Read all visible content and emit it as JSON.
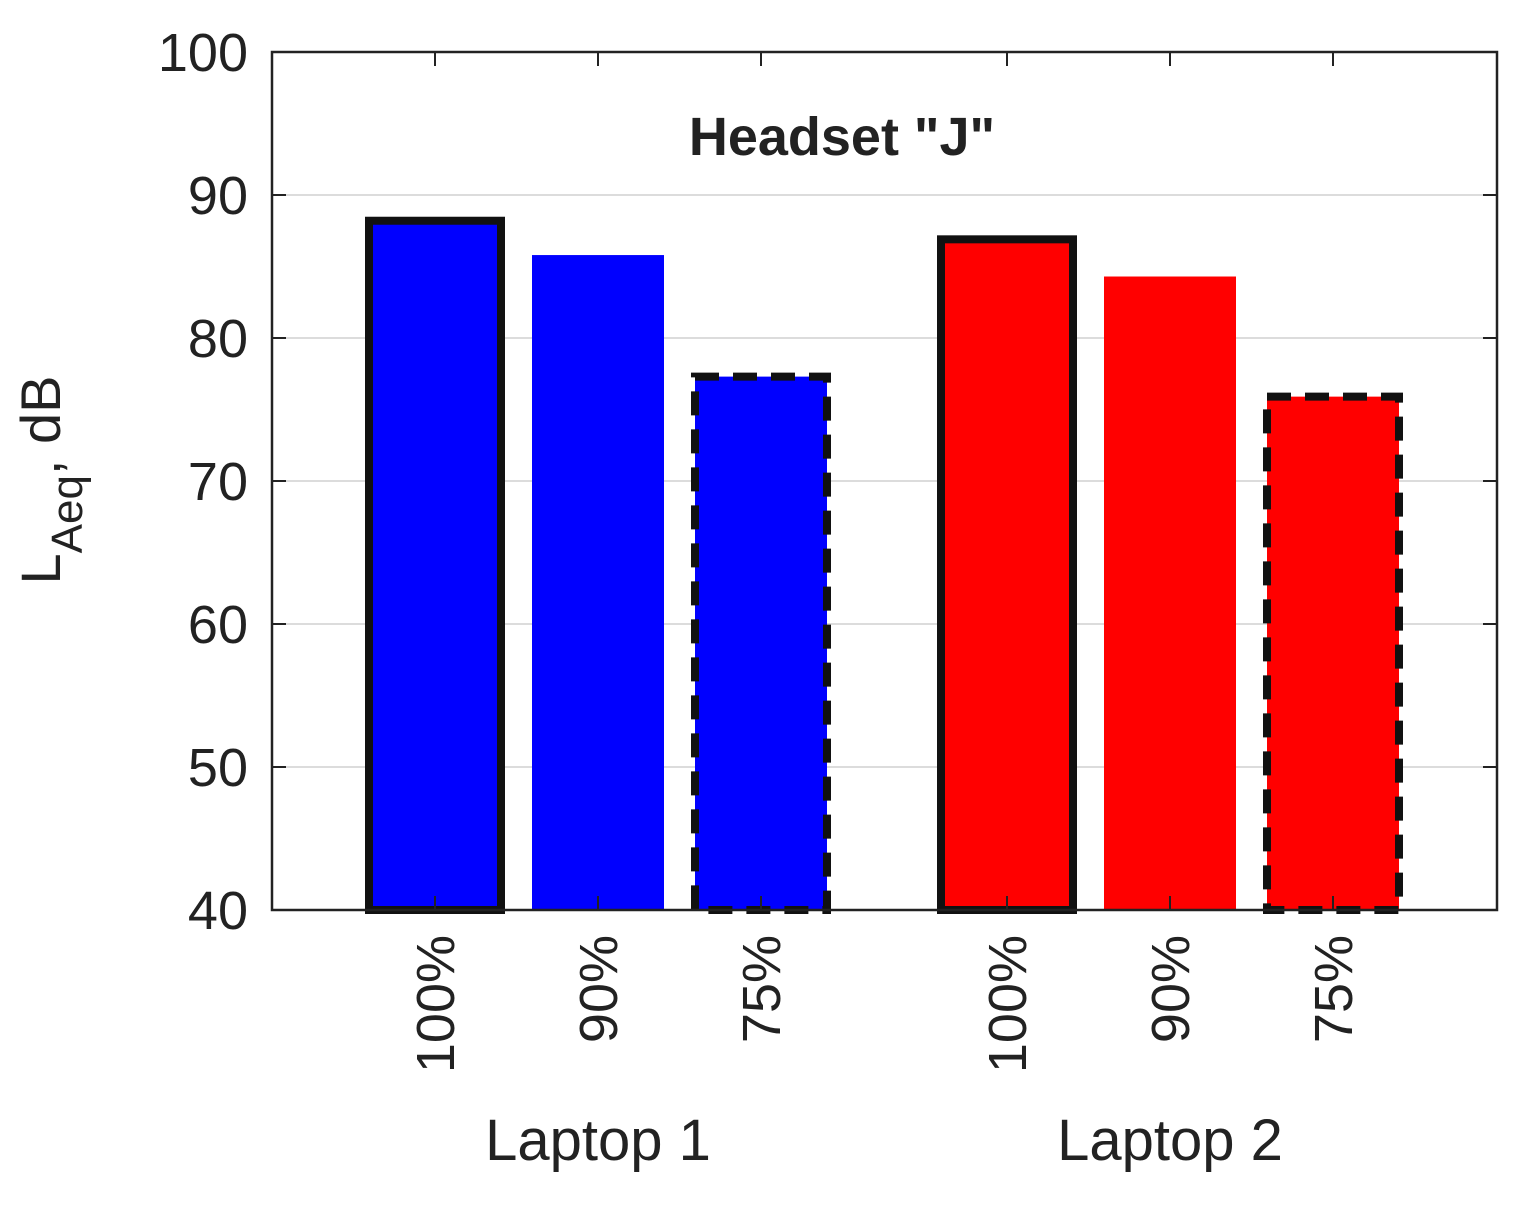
{
  "chart_data": {
    "type": "grouped-bar",
    "title": "Headset \"J\"",
    "ylabel": {
      "main": "L",
      "sub": "Aeq",
      "suffix": ", dB"
    },
    "groups": [
      {
        "name": "Laptop 1",
        "color": "#0000ff",
        "categories": [
          "100%",
          "90%",
          "75%"
        ],
        "values": [
          88.2,
          85.8,
          77.3
        ]
      },
      {
        "name": "Laptop 2",
        "color": "#ff0000",
        "categories": [
          "100%",
          "90%",
          "75%"
        ],
        "values": [
          86.9,
          84.3,
          75.9
        ]
      }
    ],
    "bar_borders": [
      "solid",
      "none",
      "dashed"
    ],
    "ylim": [
      40,
      100
    ],
    "yticks": [
      40,
      50,
      60,
      70,
      80,
      90,
      100
    ],
    "grid": true
  }
}
